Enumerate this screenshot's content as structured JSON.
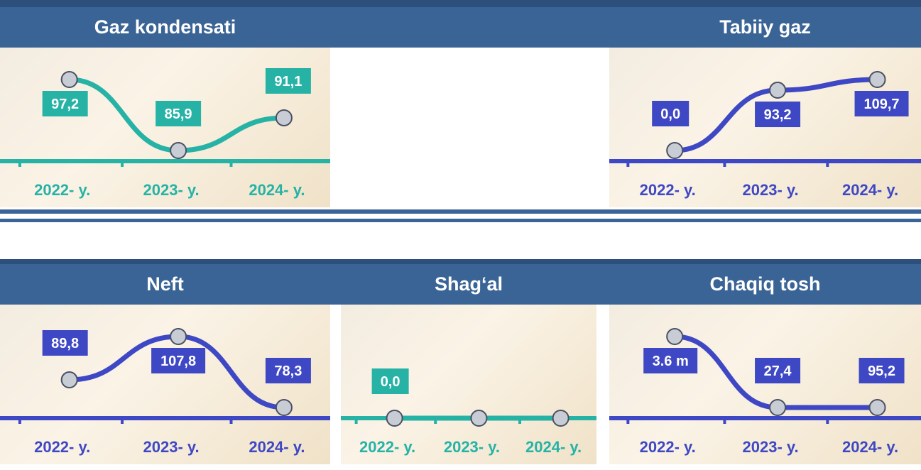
{
  "chart_data": [
    {
      "type": "line",
      "title": "Gaz kondensati",
      "categories": [
        "2022- y.",
        "2023- y.",
        "2024- y."
      ],
      "values": [
        97.2,
        85.9,
        91.1
      ],
      "value_labels": [
        "97,2",
        "85,9",
        "91,1"
      ],
      "color": "#26b3a6"
    },
    {
      "type": "line",
      "title": "Tabiiy gaz",
      "categories": [
        "2022- y.",
        "2023- y.",
        "2024- y."
      ],
      "values": [
        0.0,
        93.2,
        109.7
      ],
      "value_labels": [
        "0,0",
        "93,2",
        "109,7"
      ],
      "color": "#3f48c4"
    },
    {
      "type": "line",
      "title": "Neft",
      "categories": [
        "2022- y.",
        "2023- y.",
        "2024- y."
      ],
      "values": [
        89.8,
        107.8,
        78.3
      ],
      "value_labels": [
        "89,8",
        "107,8",
        "78,3"
      ],
      "color": "#3f48c4"
    },
    {
      "type": "line",
      "title": "Shag‘al",
      "categories": [
        "2022- y.",
        "2023- y.",
        "2024- y."
      ],
      "values": [
        0.0,
        0.0,
        0.0
      ],
      "value_labels": [
        "0,0",
        null,
        null
      ],
      "color": "#26b3a6"
    },
    {
      "type": "line",
      "title": "Chaqiq tosh",
      "categories": [
        "2022- y.",
        "2023- y.",
        "2024- y."
      ],
      "values": [
        3600000,
        27.4,
        95.2
      ],
      "value_labels": [
        "3.6 m",
        "27,4",
        "95,2"
      ],
      "color": "#3f48c4"
    }
  ]
}
